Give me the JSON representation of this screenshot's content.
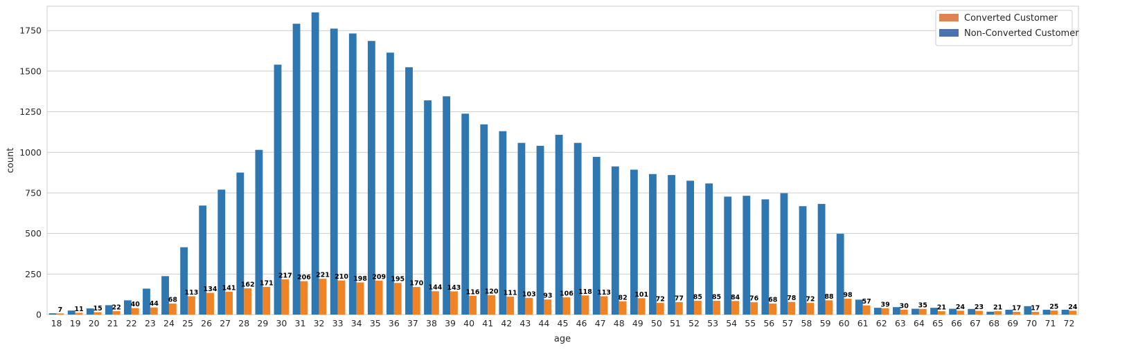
{
  "chart_data": {
    "type": "bar",
    "xlabel": "age",
    "ylabel": "count",
    "ylim": [
      0,
      1900
    ],
    "yticks": [
      0,
      250,
      500,
      750,
      1000,
      1250,
      1500,
      1750
    ],
    "grid": true,
    "legend_position": "top-right",
    "categories": [
      "18",
      "19",
      "20",
      "21",
      "22",
      "23",
      "24",
      "25",
      "26",
      "27",
      "28",
      "29",
      "30",
      "31",
      "32",
      "33",
      "34",
      "35",
      "36",
      "37",
      "38",
      "39",
      "40",
      "41",
      "42",
      "43",
      "44",
      "45",
      "46",
      "47",
      "48",
      "49",
      "50",
      "51",
      "52",
      "53",
      "54",
      "55",
      "56",
      "57",
      "58",
      "59",
      "60",
      "61",
      "62",
      "63",
      "64",
      "65",
      "66",
      "67",
      "68",
      "69",
      "70",
      "71",
      "72"
    ],
    "series": [
      {
        "name": "Non-Converted Customer",
        "legend_color": "#4c72b0",
        "bar_color": "#2f77b1",
        "values": [
          8,
          25,
          38,
          58,
          88,
          160,
          237,
          415,
          672,
          770,
          875,
          1015,
          1540,
          1792,
          1862,
          1762,
          1732,
          1686,
          1614,
          1524,
          1320,
          1345,
          1238,
          1172,
          1130,
          1058,
          1040,
          1108,
          1058,
          972,
          913,
          893,
          866,
          860,
          825,
          808,
          727,
          732,
          710,
          748,
          668,
          682,
          498,
          92,
          42,
          46,
          36,
          42,
          36,
          35,
          18,
          30,
          52,
          30,
          30
        ],
        "labeled": false
      },
      {
        "name": "Converted Customer",
        "legend_color": "#dd8452",
        "bar_color": "#ef8326",
        "values": [
          7,
          11,
          15,
          22,
          40,
          44,
          68,
          113,
          134,
          141,
          162,
          171,
          217,
          206,
          221,
          210,
          198,
          209,
          195,
          170,
          144,
          143,
          116,
          120,
          111,
          103,
          93,
          106,
          118,
          113,
          82,
          101,
          72,
          77,
          85,
          85,
          84,
          76,
          68,
          78,
          72,
          88,
          98,
          57,
          39,
          30,
          35,
          21,
          24,
          23,
          21,
          17,
          17,
          25,
          24
        ],
        "labeled": true
      }
    ]
  }
}
